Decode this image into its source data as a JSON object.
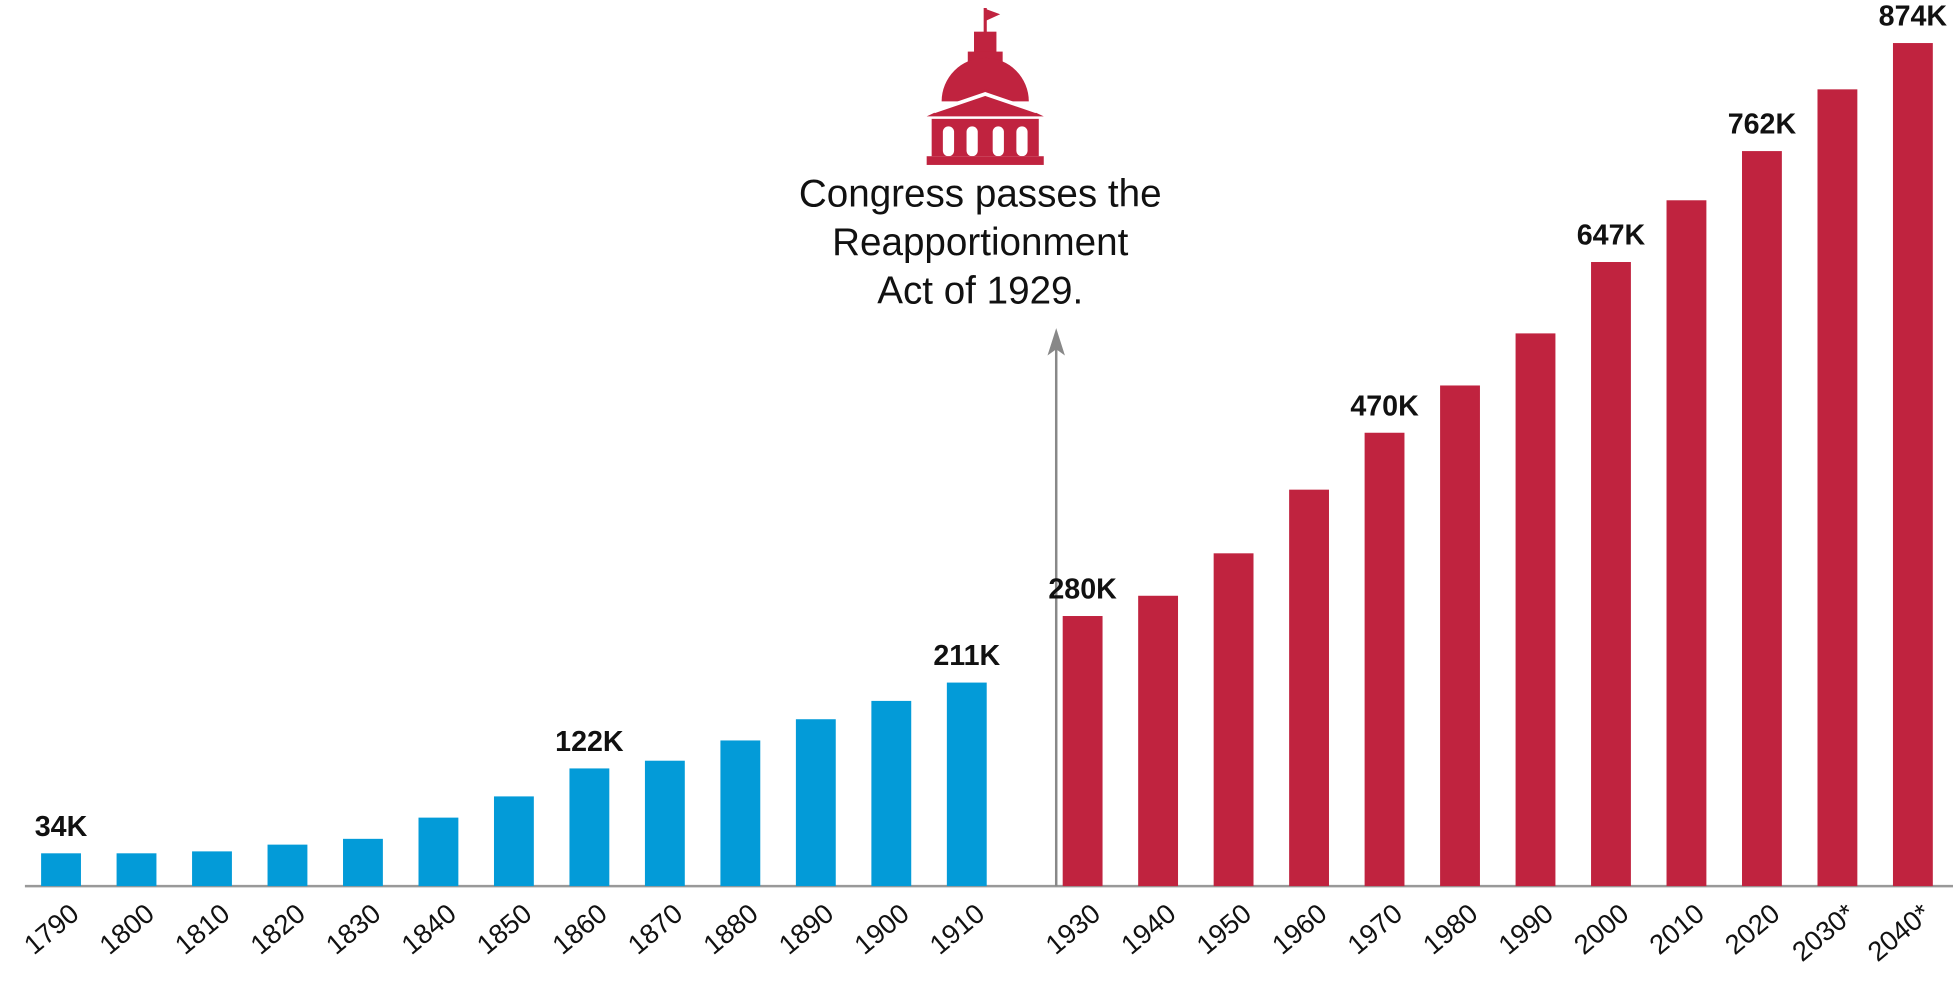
{
  "chart_data": {
    "type": "bar",
    "categories": [
      "1790",
      "1800",
      "1810",
      "1820",
      "1830",
      "1840",
      "1850",
      "1860",
      "1870",
      "1880",
      "1890",
      "1900",
      "1910",
      "1930",
      "1940",
      "1950",
      "1960",
      "1970",
      "1980",
      "1990",
      "2000",
      "2010",
      "2020",
      "2030*",
      "2040*"
    ],
    "values": [
      34000,
      34000,
      36000,
      43000,
      49000,
      71000,
      93000,
      122000,
      130000,
      151000,
      173000,
      192000,
      211000,
      280000,
      301000,
      345000,
      411000,
      470000,
      519000,
      573000,
      647000,
      711000,
      762000,
      826000,
      874000
    ],
    "value_labels": [
      "34K",
      null,
      null,
      null,
      null,
      null,
      null,
      "122K",
      null,
      null,
      null,
      null,
      "211K",
      "280K",
      null,
      null,
      null,
      "470K",
      null,
      null,
      "647K",
      null,
      "762K",
      null,
      "874K"
    ],
    "colors": [
      "#039bd8",
      "#039bd8",
      "#039bd8",
      "#039bd8",
      "#039bd8",
      "#039bd8",
      "#039bd8",
      "#039bd8",
      "#039bd8",
      "#039bd8",
      "#039bd8",
      "#039bd8",
      "#039bd8",
      "#c0233f",
      "#c0233f",
      "#c0233f",
      "#c0233f",
      "#c0233f",
      "#c0233f",
      "#c0233f",
      "#c0233f",
      "#c0233f",
      "#c0233f",
      "#c0233f",
      "#c0233f"
    ],
    "ylim": [
      0,
      900000
    ],
    "annotation": [
      "Congress passes the",
      "Reapportionment",
      "Act of 1929."
    ]
  }
}
